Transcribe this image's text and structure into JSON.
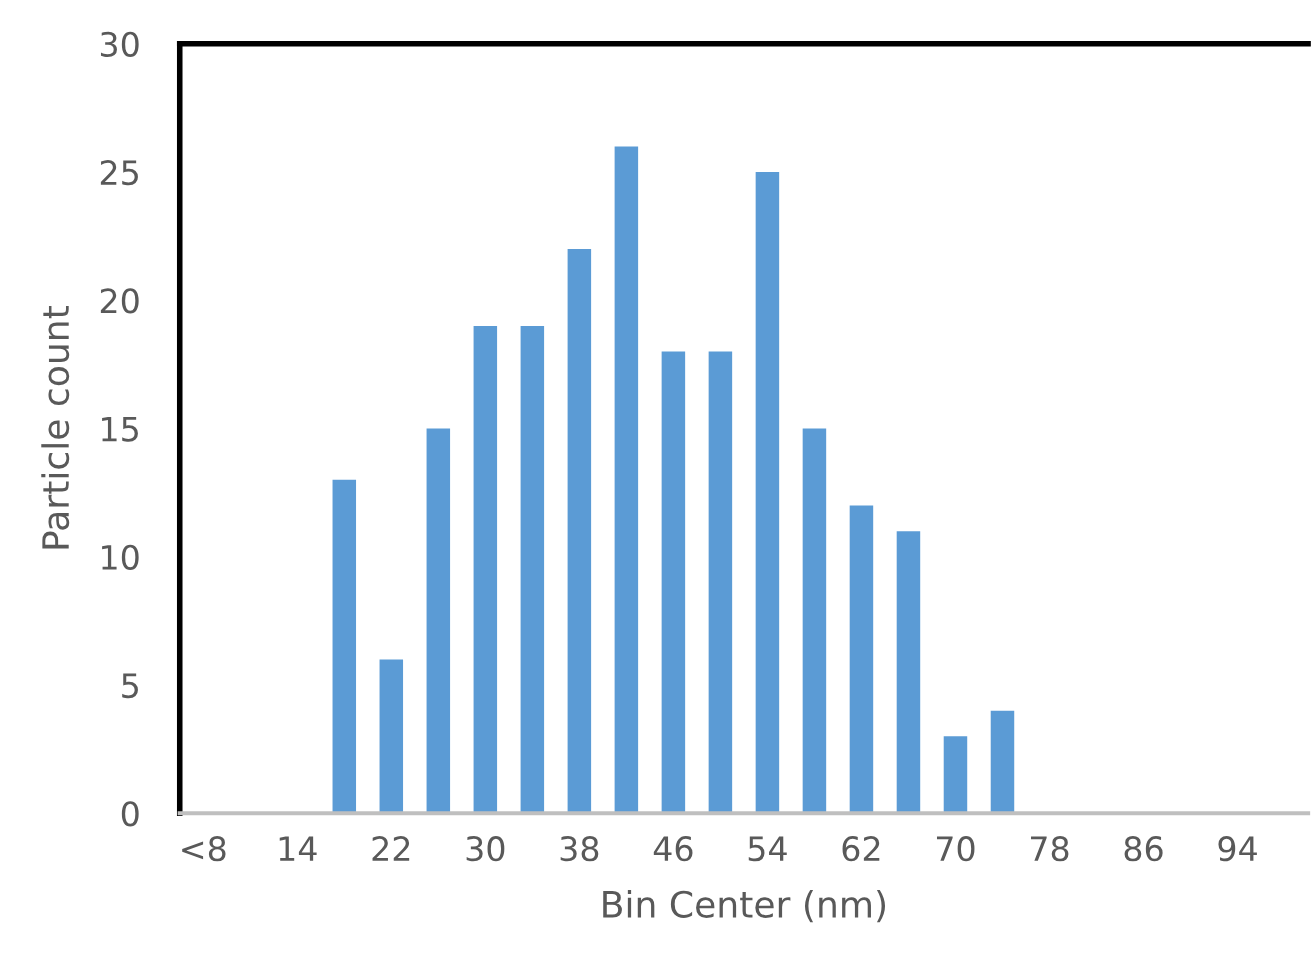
{
  "chart_data": {
    "type": "bar",
    "xlabel": "Bin Center (nm)",
    "ylabel": "Particle count",
    "categories": [
      "<8",
      null,
      "14",
      null,
      "22",
      null,
      "30",
      null,
      "38",
      null,
      "46",
      null,
      "54",
      null,
      "62",
      null,
      "70",
      null,
      "78",
      null,
      "86",
      null,
      "94",
      null
    ],
    "values": [
      0,
      0,
      0,
      13,
      6,
      15,
      19,
      19,
      22,
      26,
      18,
      18,
      25,
      15,
      12,
      11,
      3,
      4,
      0,
      0,
      0,
      0,
      0,
      0
    ],
    "color": "#5b9bd5",
    "ylim": [
      0,
      30
    ],
    "yticks": [
      0,
      5,
      10,
      15,
      20,
      25,
      30
    ],
    "grid": false
  }
}
